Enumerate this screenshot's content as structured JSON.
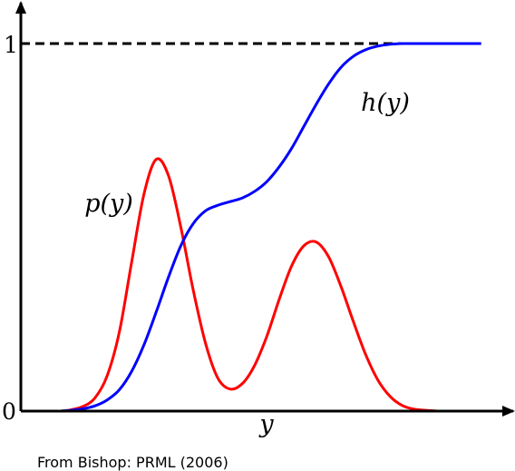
{
  "chart_data": {
    "type": "line",
    "title": "",
    "xlabel": "y",
    "ylabel": "",
    "xlim": [
      0,
      10
    ],
    "ylim": [
      0,
      1
    ],
    "y_ticks": [
      {
        "value": 0,
        "label": "0"
      },
      {
        "value": 1,
        "label": "1"
      }
    ],
    "grid": false,
    "legend": "none",
    "reference_line": {
      "y": 1,
      "style": "dashed",
      "color": "#000000"
    },
    "series": [
      {
        "name": "p(y)",
        "color": "#ff0000",
        "x": [
          0.8,
          1.0,
          1.25,
          1.5,
          1.75,
          2.0,
          2.25,
          2.5,
          2.75,
          3.0,
          3.25,
          3.5,
          3.75,
          4.0,
          4.25,
          4.5,
          4.75,
          5.0,
          5.25,
          5.5,
          5.75,
          6.0,
          6.25,
          6.5,
          6.75,
          7.0,
          7.25,
          7.5,
          7.75,
          8.0,
          8.25,
          8.5,
          8.75,
          9.0,
          9.35
        ],
        "values": [
          0.0,
          0.003,
          0.012,
          0.035,
          0.095,
          0.215,
          0.405,
          0.59,
          0.685,
          0.64,
          0.5,
          0.33,
          0.185,
          0.09,
          0.06,
          0.075,
          0.125,
          0.205,
          0.305,
          0.395,
          0.45,
          0.46,
          0.42,
          0.34,
          0.245,
          0.155,
          0.085,
          0.04,
          0.015,
          0.005,
          0.002,
          0.0,
          0.0,
          0.0,
          0.0
        ]
      },
      {
        "name": "h(y)",
        "color": "#0000ff",
        "x": [
          0.8,
          1.0,
          1.25,
          1.5,
          1.75,
          2.0,
          2.25,
          2.5,
          2.75,
          3.0,
          3.25,
          3.5,
          3.75,
          4.0,
          4.25,
          4.5,
          4.75,
          5.0,
          5.25,
          5.5,
          5.75,
          6.0,
          6.25,
          6.5,
          6.75,
          7.0,
          7.25,
          7.5,
          7.75,
          8.0,
          8.25,
          8.5,
          8.75,
          9.0,
          9.35
        ],
        "values": [
          0.0,
          0.002,
          0.006,
          0.014,
          0.03,
          0.058,
          0.108,
          0.18,
          0.27,
          0.365,
          0.45,
          0.51,
          0.545,
          0.56,
          0.57,
          0.58,
          0.598,
          0.625,
          0.665,
          0.715,
          0.775,
          0.835,
          0.89,
          0.935,
          0.965,
          0.983,
          0.993,
          0.998,
          1.0,
          1.0,
          1.0,
          1.0,
          1.0,
          1.0,
          1.0
        ]
      }
    ],
    "annotations": [
      {
        "text": "p(y)",
        "series": "p(y)"
      },
      {
        "text": "h(y)",
        "series": "h(y)"
      }
    ]
  },
  "caption": "From Bishop: PRML (2006)"
}
